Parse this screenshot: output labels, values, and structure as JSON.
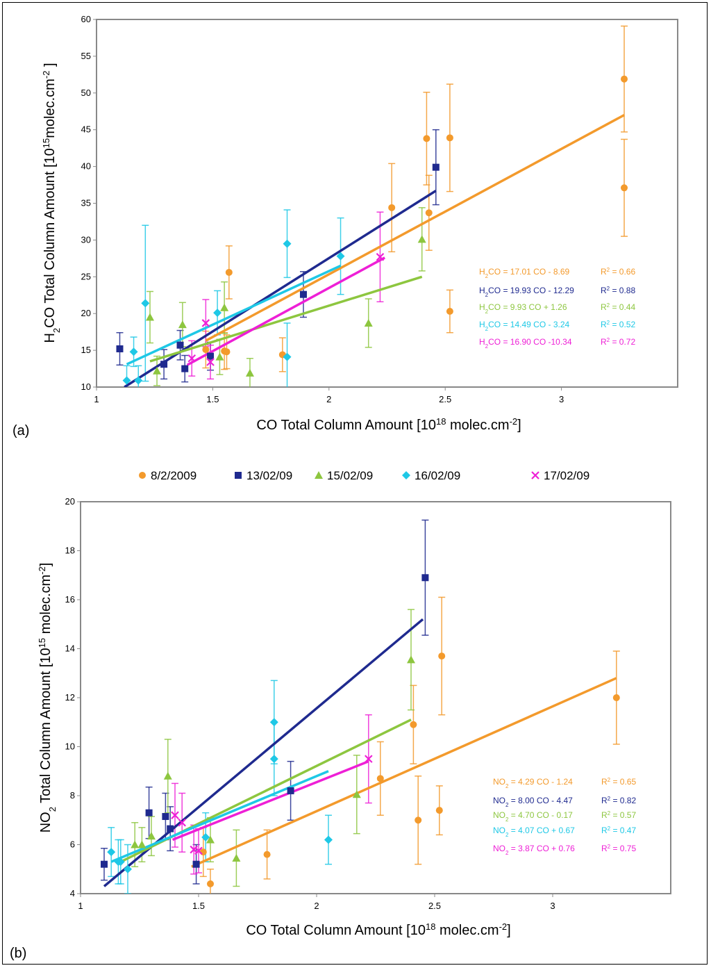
{
  "legend": [
    {
      "name": "8/2/2009",
      "color": "#f39a2c",
      "marker": "circle"
    },
    {
      "name": "13/02/09",
      "color": "#1f2a8f",
      "marker": "square"
    },
    {
      "name": "15/02/09",
      "color": "#8dc63f",
      "marker": "triangle"
    },
    {
      "name": "16/02/09",
      "color": "#1ec8e6",
      "marker": "diamond"
    },
    {
      "name": "17/02/09",
      "color": "#ee1fd6",
      "marker": "x"
    }
  ],
  "chart_data": [
    {
      "panel_label": "(a)",
      "type": "scatter",
      "xlabel_main": "CO Total Column Amount [10",
      "xlabel_sup": "18",
      "xlabel_end": " molec.cm",
      "xlabel_sup2": "-2",
      "xlabel_close": "]",
      "ylabel_a": "H",
      "ylabel_sub": "2",
      "ylabel_b": "CO Total Column Amount [10",
      "ylabel_sup": "15",
      "ylabel_c": "molec.cm",
      "ylabel_sup2": "-2",
      "ylabel_close": " ]",
      "xlim": [
        1,
        3.5
      ],
      "ylim": [
        10,
        60
      ],
      "xticks": [
        "1",
        "1.5",
        "2",
        "2.5",
        "3"
      ],
      "xtick_values": [
        1,
        1.5,
        2,
        2.5,
        3
      ],
      "yticks": [
        "10",
        "15",
        "20",
        "25",
        "30",
        "35",
        "40",
        "45",
        "50",
        "55",
        "60"
      ],
      "ytick_values": [
        10,
        15,
        20,
        25,
        30,
        35,
        40,
        45,
        50,
        55,
        60
      ],
      "series": [
        {
          "name": "8/2/2009",
          "points": [
            [
              1.47,
              15.1,
              2.5
            ],
            [
              1.55,
              14.9,
              2.5
            ],
            [
              1.57,
              25.6,
              3.6
            ],
            [
              1.8,
              14.4,
              2.3
            ],
            [
              2.27,
              34.4,
              6
            ],
            [
              2.42,
              43.8,
              6.3
            ],
            [
              2.43,
              33.7,
              5.1
            ],
            [
              2.52,
              43.9,
              7.3
            ],
            [
              2.52,
              20.3,
              2.9
            ],
            [
              3.27,
              51.9,
              7.2
            ],
            [
              3.27,
              37.1,
              6.6
            ],
            [
              1.56,
              14.8,
              2.3
            ]
          ],
          "fit": [
            [
              1.47,
              16.3
            ],
            [
              3.27,
              47.0
            ]
          ]
        },
        {
          "name": "13/02/09",
          "points": [
            [
              1.1,
              15.2,
              2.2
            ],
            [
              1.29,
              13.1,
              2
            ],
            [
              1.36,
              15.7,
              2
            ],
            [
              1.38,
              12.5,
              1.8
            ],
            [
              1.49,
              14.2,
              1.9
            ],
            [
              1.89,
              22.6,
              3.1
            ],
            [
              2.46,
              39.9,
              5.1
            ]
          ],
          "fit": [
            [
              1.12,
              10.0
            ],
            [
              2.46,
              36.7
            ]
          ]
        },
        {
          "name": "15/02/09",
          "points": [
            [
              1.23,
              19.5,
              3.5
            ],
            [
              1.26,
              12.2,
              2
            ],
            [
              1.37,
              18.5,
              3
            ],
            [
              1.53,
              14.1,
              2.4
            ],
            [
              1.55,
              20.8,
              3.5
            ],
            [
              1.66,
              11.9,
              2
            ],
            [
              2.17,
              18.7,
              3.3
            ],
            [
              2.4,
              30.1,
              4.3
            ]
          ],
          "fit": [
            [
              1.23,
              13.5
            ],
            [
              2.4,
              25.0
            ]
          ]
        },
        {
          "name": "16/02/09",
          "points": [
            [
              1.13,
              10.9,
              2
            ],
            [
              1.16,
              14.8,
              2
            ],
            [
              1.18,
              10.9,
              2
            ],
            [
              1.21,
              21.4,
              10.6
            ],
            [
              1.52,
              20.1,
              3
            ],
            [
              1.82,
              29.5,
              4.6
            ],
            [
              1.82,
              14.1,
              4.6
            ],
            [
              2.05,
              27.8,
              5.2
            ]
          ],
          "fit": [
            [
              1.13,
              13.1
            ],
            [
              2.05,
              26.5
            ]
          ]
        },
        {
          "name": "17/02/09",
          "points": [
            [
              1.41,
              13.9,
              2.4
            ],
            [
              1.47,
              18.7,
              3.2
            ],
            [
              1.49,
              13.4,
              2.3
            ],
            [
              2.22,
              27.7,
              6.1
            ]
          ],
          "fit": [
            [
              1.39,
              13.0
            ],
            [
              2.24,
              27.6
            ]
          ]
        }
      ],
      "equations": [
        {
          "lhs": "H",
          "sub": "2",
          "rhs": "CO = 17.01 CO - 8.69",
          "r2": "R",
          "r2sup": "2",
          "r2val": " = 0.66"
        },
        {
          "lhs": "H",
          "sub": "2",
          "rhs": "CO = 19.93 CO - 12.29",
          "r2": "R",
          "r2sup": "2",
          "r2val": " = 0.88"
        },
        {
          "lhs": "H",
          "sub": "2",
          "rhs": "CO = 9.93 CO + 1.26",
          "r2": "R",
          "r2sup": "2",
          "r2val": " = 0.44"
        },
        {
          "lhs": "H",
          "sub": "2",
          "rhs": "CO = 14.49 CO - 3.24",
          "r2": "R",
          "r2sup": "2",
          "r2val": " = 0.52"
        },
        {
          "lhs": "H",
          "sub": "2",
          "rhs": "CO = 16.90 CO -10.34",
          "r2": "R",
          "r2sup": "2",
          "r2val": " = 0.72"
        }
      ]
    },
    {
      "panel_label": "(b)",
      "type": "scatter",
      "xlabel_main": "CO Total Column Amount [10",
      "xlabel_sup": "18",
      "xlabel_end": " molec.cm",
      "xlabel_sup2": "-2",
      "xlabel_close": "]",
      "ylabel_a": "NO",
      "ylabel_sub": "2",
      "ylabel_b": " Total Column Amount [10",
      "ylabel_sup": "15",
      "ylabel_c": " molec.cm",
      "ylabel_sup2": "-2",
      "ylabel_close": "]",
      "xlim": [
        1,
        3.5
      ],
      "ylim": [
        4,
        20
      ],
      "xticks": [
        "1",
        "1.5",
        "2",
        "2.5",
        "3"
      ],
      "xtick_values": [
        1,
        1.5,
        2,
        2.5,
        3
      ],
      "yticks": [
        "4",
        "6",
        "8",
        "10",
        "12",
        "14",
        "16",
        "18",
        "20"
      ],
      "ytick_values": [
        4,
        6,
        8,
        10,
        12,
        14,
        16,
        18,
        20
      ],
      "series": [
        {
          "name": "8/2/2009",
          "points": [
            [
              1.52,
              5.7,
              1
            ],
            [
              1.55,
              4.4,
              0.6
            ],
            [
              1.79,
              5.6,
              1
            ],
            [
              2.27,
              8.7,
              1.5
            ],
            [
              2.41,
              10.9,
              1.6
            ],
            [
              2.43,
              7.0,
              1.8
            ],
            [
              2.52,
              7.4,
              1
            ],
            [
              2.53,
              13.7,
              2.4
            ],
            [
              3.27,
              12.0,
              1.9
            ]
          ],
          "fit": [
            [
              1.47,
              5.1
            ],
            [
              3.27,
              12.8
            ]
          ]
        },
        {
          "name": "13/02/09",
          "points": [
            [
              1.1,
              5.2,
              0.65
            ],
            [
              1.29,
              7.3,
              1.05
            ],
            [
              1.36,
              7.15,
              0.95
            ],
            [
              1.38,
              6.65,
              0.9
            ],
            [
              1.49,
              5.2,
              0.8
            ],
            [
              1.89,
              8.2,
              1.2
            ],
            [
              2.46,
              16.9,
              2.35
            ]
          ],
          "fit": [
            [
              1.1,
              4.3
            ],
            [
              2.45,
              15.2
            ]
          ]
        },
        {
          "name": "15/02/09",
          "points": [
            [
              1.23,
              6.0,
              0.9
            ],
            [
              1.26,
              6.0,
              0.7
            ],
            [
              1.3,
              6.35,
              0.8
            ],
            [
              1.37,
              8.8,
              1.5
            ],
            [
              1.55,
              6.2,
              0.9
            ],
            [
              1.66,
              5.45,
              1.15
            ],
            [
              2.17,
              8.05,
              1.6
            ],
            [
              2.4,
              13.55,
              2.05
            ]
          ],
          "fit": [
            [
              1.17,
              5.3
            ],
            [
              2.4,
              11.1
            ]
          ]
        },
        {
          "name": "16/02/09",
          "points": [
            [
              1.13,
              5.7,
              1
            ],
            [
              1.16,
              5.3,
              0.9
            ],
            [
              1.17,
              5.3,
              0.9
            ],
            [
              1.2,
              5.0,
              1
            ],
            [
              1.53,
              6.3,
              1
            ],
            [
              1.82,
              11.0,
              1.7
            ],
            [
              1.82,
              9.5,
              1.5
            ],
            [
              2.05,
              6.2,
              1
            ]
          ],
          "fit": [
            [
              1.13,
              5.3
            ],
            [
              2.05,
              9.0
            ]
          ]
        },
        {
          "name": "17/02/09",
          "points": [
            [
              1.4,
              7.2,
              1.3
            ],
            [
              1.43,
              6.9,
              1.2
            ],
            [
              1.48,
              5.8,
              1
            ],
            [
              1.5,
              5.75,
              0.9
            ],
            [
              2.22,
              9.5,
              1.8
            ]
          ],
          "fit": [
            [
              1.39,
              6.2
            ],
            [
              2.22,
              9.4
            ]
          ]
        }
      ],
      "equations": [
        {
          "lhs": "NO",
          "sub": "2",
          "rhs": " = 4.29 CO - 1.24",
          "r2": "R",
          "r2sup": "2",
          "r2val": " = 0.65"
        },
        {
          "lhs": "NO",
          "sub": "2",
          "rhs": " = 8.00 CO - 4.47",
          "r2": "R",
          "r2sup": "2",
          "r2val": " = 0.82"
        },
        {
          "lhs": "NO",
          "sub": "2",
          "rhs": " = 4.70 CO - 0.17",
          "r2": "R",
          "r2sup": "2",
          "r2val": " = 0.57"
        },
        {
          "lhs": "NO",
          "sub": "2",
          "rhs": " = 4.07 CO + 0.67",
          "r2": "R",
          "r2sup": "2",
          "r2val": " = 0.47"
        },
        {
          "lhs": "NO",
          "sub": "2",
          "rhs": " = 3.87 CO + 0.76",
          "r2": "R",
          "r2sup": "2",
          "r2val": " = 0.75"
        }
      ]
    }
  ]
}
